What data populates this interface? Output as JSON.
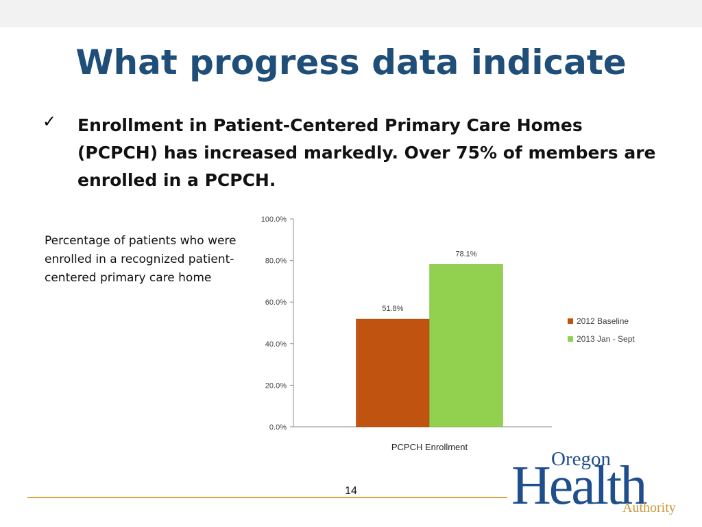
{
  "slide": {
    "title": "What progress data indicate",
    "bullet_mark": "✓",
    "bullet_text": "Enrollment in Patient-Centered Primary Care Homes (PCPCH) has increased markedly.  Over 75% of members are enrolled in a PCPCH.",
    "caption": "Percentage of patients who were enrolled in a recognized patient-centered primary care home",
    "page_number": "14"
  },
  "logo": {
    "word_top": "Oregon",
    "word_main": "Health",
    "word_bottom": "Authority"
  },
  "colors": {
    "title": "#1f4e79",
    "series_2012": "#c0530f",
    "series_2013": "#92d050",
    "rule": "#e4a23a",
    "logo_blue": "#1f4e8c",
    "logo_gold": "#c89a3a"
  },
  "chart_data": {
    "type": "bar",
    "categories": [
      "PCPCH Enrollment"
    ],
    "series": [
      {
        "name": "2012 Baseline",
        "values": [
          51.8
        ],
        "label": "51.8%",
        "color": "#c0530f"
      },
      {
        "name": "2013 Jan - Sept",
        "values": [
          78.1
        ],
        "label": "78.1%",
        "color": "#92d050"
      }
    ],
    "ylim": [
      0,
      100
    ],
    "yticks": [
      "0.0%",
      "20.0%",
      "40.0%",
      "60.0%",
      "80.0%",
      "100.0%"
    ],
    "ytick_values": [
      0,
      20,
      40,
      60,
      80,
      100
    ],
    "xlabel": "PCPCH Enrollment",
    "grid": false,
    "legend_position": "right"
  }
}
